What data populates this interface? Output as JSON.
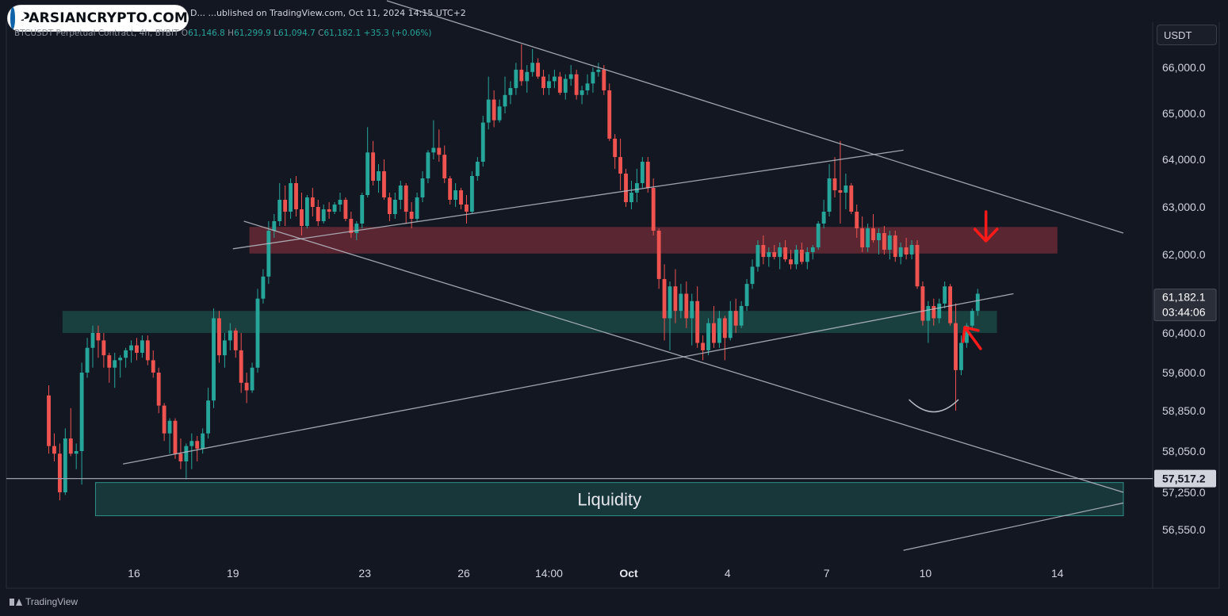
{
  "header": {
    "publisher_line": "D... ...ublished on TradingView.com, Oct 11, 2024 14:15 UTC+2",
    "ohlc_prefix": "BTCUSDT Perpetual Contract, 4h, BYBIT",
    "open_label": "O",
    "open": "61,146.8",
    "high_label": "H",
    "high": "61,299.9",
    "low_label": "L",
    "low": "61,094.7",
    "close_label": "C",
    "close": "61,182.1",
    "change": "+35.3 (+0.06%)"
  },
  "logo": {
    "text": "PARSIANCRYPTO.COM",
    "icon": "user-shield-icon"
  },
  "currency": "USDT",
  "brand": {
    "label": "TradingView",
    "icon": "tradingview-logo-icon"
  },
  "colors": {
    "bull": "#26a69a",
    "bear": "#ef5350",
    "background": "#131722",
    "resistance_zone": "#6b2b36",
    "support_zone": "#1d4a47",
    "arrow": "#ff1a1a"
  },
  "chart_data": {
    "type": "candlestick",
    "symbol": "BTCUSDT Perpetual Contract",
    "timeframe": "4h",
    "exchange": "BYBIT",
    "ylim": [
      56000,
      67000
    ],
    "xlim": [
      "2024-09-13T08:00",
      "2024-10-16T00:00"
    ],
    "yaxis_ticks": [
      "66,000.0",
      "65,000.0",
      "64,000.0",
      "63,000.0",
      "62,000.0",
      "60,400.0",
      "59,600.0",
      "58,850.0",
      "58,050.0",
      "57,250.0",
      "56,550.0"
    ],
    "yaxis_values": [
      66000,
      65000,
      64000,
      63000,
      62000,
      60400,
      59600,
      58850,
      58050,
      57250,
      56550
    ],
    "xaxis_ticks": [
      {
        "label": "16",
        "t": "2024-09-16T00:00"
      },
      {
        "label": "19",
        "t": "2024-09-19T00:00"
      },
      {
        "label": "23",
        "t": "2024-09-23T00:00"
      },
      {
        "label": "26",
        "t": "2024-09-26T00:00"
      },
      {
        "label": "14:00",
        "t": "2024-09-28T14:00"
      },
      {
        "label": "Oct",
        "t": "2024-10-01T00:00"
      },
      {
        "label": "4",
        "t": "2024-10-04T00:00"
      },
      {
        "label": "7",
        "t": "2024-10-07T00:00"
      },
      {
        "label": "10",
        "t": "2024-10-10T00:00"
      },
      {
        "label": "14",
        "t": "2024-10-14T00:00"
      }
    ],
    "price_labels": [
      {
        "price": 61182.1,
        "text": "61,182.1",
        "subtext": "03:44:06",
        "style": "last"
      },
      {
        "price": 57517.2,
        "text": "57,517.2",
        "style": "level"
      }
    ],
    "horizontal_line": {
      "price": 57517.2
    },
    "zones": [
      {
        "name": "resistance",
        "from": "2024-09-19T12:00",
        "to": "2024-10-14T00:00",
        "low": 62020,
        "high": 62580,
        "color": "#6b2b36"
      },
      {
        "name": "support",
        "from": "2024-09-13T20:00",
        "to": "2024-10-12T04:00",
        "low": 60400,
        "high": 60850,
        "color": "#1d4a47"
      },
      {
        "name": "liquidity",
        "label": "Liquidity",
        "from": "2024-09-14T20:00",
        "to": "2024-10-16T00:00",
        "low": 56810,
        "high": 57440,
        "color": "#1e5250"
      }
    ],
    "trendlines": [
      {
        "x1": "2024-09-23T16:00",
        "y1": 67450,
        "x2": "2024-10-16T00:00",
        "y2": 62450
      },
      {
        "x1": "2024-09-19T08:00",
        "y1": 62700,
        "x2": "2024-10-16T00:00",
        "y2": 57250
      },
      {
        "x1": "2024-09-19T00:00",
        "y1": 62120,
        "x2": "2024-10-09T08:00",
        "y2": 64200
      },
      {
        "x1": "2024-09-15T16:00",
        "y1": 57800,
        "x2": "2024-10-12T16:00",
        "y2": 61200
      },
      {
        "x1": "2024-10-09T08:00",
        "y1": 56160,
        "x2": "2024-10-16T00:00",
        "y2": 57050
      }
    ],
    "arc": {
      "from": "2024-10-09T12:00",
      "to": "2024-10-11T00:00",
      "bottom": 58850
    },
    "arrows": [
      {
        "direction": "down",
        "t": "2024-10-11T20:00",
        "price": 62500
      },
      {
        "direction": "up-left",
        "t": "2024-10-11T08:00",
        "price": 60500
      }
    ],
    "candles": [
      [
        59150,
        59350,
        58000,
        58150
      ],
      [
        58150,
        58400,
        57850,
        58000
      ],
      [
        58000,
        58200,
        57100,
        57250
      ],
      [
        57250,
        58500,
        57200,
        58300
      ],
      [
        58300,
        58900,
        57950,
        58000
      ],
      [
        58000,
        58200,
        57700,
        58050
      ],
      [
        58050,
        59800,
        57400,
        59600
      ],
      [
        59600,
        60300,
        59500,
        60100
      ],
      [
        60100,
        60550,
        59700,
        60400
      ],
      [
        60400,
        60550,
        59900,
        60250
      ],
      [
        60250,
        60400,
        59700,
        59950
      ],
      [
        59950,
        60000,
        59400,
        59700
      ],
      [
        59700,
        60000,
        59300,
        59850
      ],
      [
        59850,
        59950,
        59500,
        59900
      ],
      [
        59900,
        60100,
        59700,
        60050
      ],
      [
        60050,
        60250,
        59800,
        60150
      ],
      [
        60150,
        60300,
        59850,
        60000
      ],
      [
        60000,
        60350,
        59900,
        60250
      ],
      [
        60250,
        60350,
        59750,
        59850
      ],
      [
        59850,
        60050,
        59500,
        59600
      ],
      [
        59600,
        59700,
        58800,
        58950
      ],
      [
        58950,
        59000,
        58250,
        58400
      ],
      [
        58400,
        58700,
        58000,
        58650
      ],
      [
        58650,
        58700,
        57900,
        58000
      ],
      [
        58000,
        58300,
        57700,
        57850
      ],
      [
        57850,
        58200,
        57500,
        58150
      ],
      [
        58150,
        58400,
        57700,
        58250
      ],
      [
        58250,
        58350,
        57850,
        58100
      ],
      [
        58100,
        58500,
        58000,
        58400
      ],
      [
        58400,
        59300,
        58300,
        59050
      ],
      [
        59050,
        60900,
        58900,
        60700
      ],
      [
        60700,
        60850,
        59800,
        59950
      ],
      [
        59950,
        60400,
        59700,
        60250
      ],
      [
        60250,
        60600,
        60050,
        60450
      ],
      [
        60450,
        60500,
        59900,
        60050
      ],
      [
        60050,
        60400,
        59200,
        59400
      ],
      [
        59400,
        59600,
        59000,
        59250
      ],
      [
        59250,
        59800,
        59200,
        59700
      ],
      [
        59700,
        61300,
        59600,
        61100
      ],
      [
        61100,
        61700,
        61000,
        61550
      ],
      [
        61550,
        62700,
        61400,
        62500
      ],
      [
        62500,
        62850,
        62350,
        62700
      ],
      [
        62700,
        63500,
        62600,
        63150
      ],
      [
        63150,
        63450,
        62600,
        62900
      ],
      [
        62900,
        63600,
        62750,
        63500
      ],
      [
        63500,
        63650,
        62800,
        62950
      ],
      [
        62950,
        63300,
        62400,
        62600
      ],
      [
        62600,
        63250,
        62550,
        63200
      ],
      [
        63200,
        63400,
        62800,
        63000
      ],
      [
        63000,
        63150,
        62600,
        62700
      ],
      [
        62700,
        63050,
        62650,
        62950
      ],
      [
        62950,
        63100,
        62750,
        62900
      ],
      [
        62900,
        63100,
        62850,
        63050
      ],
      [
        63050,
        63300,
        62900,
        63150
      ],
      [
        63150,
        63200,
        62700,
        62750
      ],
      [
        62750,
        62900,
        62350,
        62450
      ],
      [
        62450,
        62700,
        62300,
        62650
      ],
      [
        62650,
        63300,
        62550,
        63250
      ],
      [
        63250,
        64700,
        63200,
        64150
      ],
      [
        64150,
        64400,
        63450,
        63550
      ],
      [
        63550,
        63900,
        63300,
        63750
      ],
      [
        63750,
        64000,
        63150,
        63200
      ],
      [
        63200,
        63300,
        62700,
        62850
      ],
      [
        62850,
        63300,
        62750,
        63150
      ],
      [
        63150,
        63550,
        62950,
        63450
      ],
      [
        63450,
        63500,
        62650,
        62900
      ],
      [
        62900,
        63100,
        62550,
        62750
      ],
      [
        62750,
        63300,
        62700,
        63200
      ],
      [
        63200,
        63750,
        63100,
        63600
      ],
      [
        63600,
        64200,
        63500,
        64150
      ],
      [
        64150,
        64850,
        64000,
        64250
      ],
      [
        64250,
        64650,
        63950,
        64100
      ],
      [
        64100,
        64300,
        63500,
        63600
      ],
      [
        63600,
        63650,
        63050,
        63150
      ],
      [
        63150,
        63500,
        63000,
        63350
      ],
      [
        63350,
        63400,
        62950,
        63050
      ],
      [
        63050,
        63250,
        62650,
        62900
      ],
      [
        62900,
        63750,
        62850,
        63650
      ],
      [
        63650,
        64050,
        63550,
        63950
      ],
      [
        63950,
        64950,
        63850,
        64800
      ],
      [
        64800,
        65800,
        64650,
        65300
      ],
      [
        65300,
        65500,
        64700,
        64850
      ],
      [
        64850,
        65300,
        64800,
        65150
      ],
      [
        65150,
        65800,
        65000,
        65400
      ],
      [
        65400,
        65700,
        65200,
        65550
      ],
      [
        65550,
        66100,
        65400,
        65950
      ],
      [
        65950,
        66500,
        65600,
        65700
      ],
      [
        65700,
        66050,
        65450,
        65900
      ],
      [
        65900,
        66400,
        65800,
        66100
      ],
      [
        66100,
        66200,
        65750,
        65800
      ],
      [
        65800,
        65950,
        65400,
        65550
      ],
      [
        65550,
        65850,
        65400,
        65700
      ],
      [
        65700,
        65950,
        65550,
        65800
      ],
      [
        65800,
        65900,
        65400,
        65450
      ],
      [
        65450,
        65850,
        65300,
        65750
      ],
      [
        65750,
        66050,
        65600,
        65850
      ],
      [
        65850,
        65950,
        65300,
        65400
      ],
      [
        65400,
        65600,
        65200,
        65500
      ],
      [
        65500,
        65850,
        65400,
        65650
      ],
      [
        65650,
        66000,
        65450,
        65900
      ],
      [
        65900,
        66100,
        65800,
        65950
      ],
      [
        65950,
        66050,
        65400,
        65500
      ],
      [
        65500,
        65650,
        64400,
        64450
      ],
      [
        64450,
        64550,
        63800,
        64050
      ],
      [
        64050,
        64450,
        63350,
        63700
      ],
      [
        63700,
        63800,
        63000,
        63100
      ],
      [
        63100,
        63550,
        62950,
        63300
      ],
      [
        63300,
        63800,
        63100,
        63500
      ],
      [
        63500,
        64050,
        63400,
        63950
      ],
      [
        63950,
        64050,
        63300,
        63400
      ],
      [
        63400,
        63600,
        62400,
        62500
      ],
      [
        62500,
        62550,
        61300,
        61500
      ],
      [
        61500,
        61800,
        60250,
        60700
      ],
      [
        60700,
        61450,
        60050,
        61350
      ],
      [
        61350,
        61700,
        60600,
        60850
      ],
      [
        60850,
        61400,
        60700,
        61200
      ],
      [
        61200,
        61450,
        60500,
        60700
      ],
      [
        60700,
        61200,
        60150,
        61050
      ],
      [
        61050,
        61350,
        60100,
        60200
      ],
      [
        60200,
        60350,
        59850,
        60050
      ],
      [
        60050,
        60700,
        59950,
        60600
      ],
      [
        60600,
        60950,
        60100,
        60200
      ],
      [
        60200,
        60850,
        60100,
        60700
      ],
      [
        60700,
        60750,
        59850,
        60300
      ],
      [
        60300,
        61050,
        60250,
        60850
      ],
      [
        60850,
        61100,
        60400,
        60550
      ],
      [
        60550,
        61050,
        60500,
        60950
      ],
      [
        60950,
        61500,
        60850,
        61400
      ],
      [
        61400,
        61900,
        61300,
        61750
      ],
      [
        61750,
        62300,
        61650,
        62200
      ],
      [
        62200,
        62400,
        61800,
        61950
      ],
      [
        61950,
        62150,
        61750,
        62050
      ],
      [
        62050,
        62200,
        61900,
        61950
      ],
      [
        61950,
        62250,
        61700,
        62150
      ],
      [
        62150,
        62300,
        61850,
        61900
      ],
      [
        61900,
        62100,
        61700,
        61800
      ],
      [
        61800,
        62200,
        61700,
        62100
      ],
      [
        62100,
        62250,
        61800,
        61850
      ],
      [
        61850,
        62150,
        61700,
        62050
      ],
      [
        62050,
        62200,
        61900,
        62150
      ],
      [
        62150,
        62700,
        62100,
        62650
      ],
      [
        62650,
        63150,
        62550,
        62900
      ],
      [
        62900,
        63900,
        62800,
        63600
      ],
      [
        63600,
        64050,
        63200,
        63350
      ],
      [
        63350,
        64400,
        62650,
        63300
      ],
      [
        63300,
        63700,
        62950,
        63450
      ],
      [
        63450,
        63500,
        62850,
        62900
      ],
      [
        62900,
        63050,
        62350,
        62550
      ],
      [
        62550,
        62800,
        62050,
        62150
      ],
      [
        62150,
        62650,
        62050,
        62550
      ],
      [
        62550,
        62850,
        62250,
        62300
      ],
      [
        62300,
        62550,
        62000,
        62450
      ],
      [
        62450,
        62600,
        62000,
        62100
      ],
      [
        62100,
        62500,
        61900,
        62400
      ],
      [
        62400,
        62500,
        61850,
        61950
      ],
      [
        61950,
        62250,
        61800,
        62150
      ],
      [
        62150,
        62350,
        61900,
        62000
      ],
      [
        62000,
        62300,
        61900,
        62200
      ],
      [
        62200,
        62300,
        61300,
        61350
      ],
      [
        61350,
        61450,
        60550,
        60650
      ],
      [
        60650,
        61050,
        60200,
        60950
      ],
      [
        60950,
        61100,
        60550,
        60700
      ],
      [
        60700,
        61100,
        60600,
        61000
      ],
      [
        61000,
        61450,
        60900,
        61350
      ],
      [
        61350,
        61400,
        60550,
        60600
      ],
      [
        60600,
        61000,
        58850,
        59650
      ],
      [
        59650,
        60350,
        59550,
        60200
      ],
      [
        60200,
        60600,
        60100,
        60550
      ],
      [
        60550,
        60900,
        60450,
        60850
      ],
      [
        60850,
        61300,
        60750,
        61200
      ]
    ]
  }
}
